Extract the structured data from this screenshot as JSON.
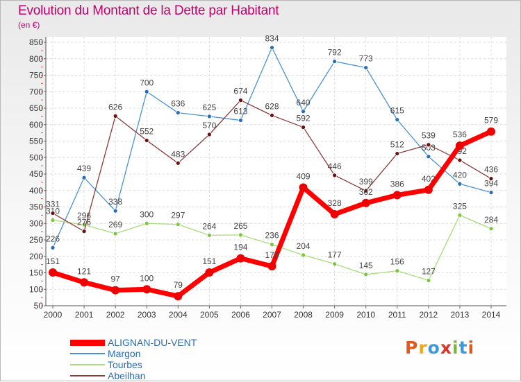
{
  "title": "Evolution du Montant de la Dette par Habitant",
  "unit_label": "(en €)",
  "logo_text": "Proxiti",
  "logo_colors": [
    "#e05a1e",
    "#f0a81a",
    "#3a9ad9",
    "#d8372a",
    "#7ab833",
    "#3a9ad9",
    "#e05a1e"
  ],
  "chart_data": {
    "type": "line",
    "x": [
      "2000",
      "2001",
      "2002",
      "2003",
      "2004",
      "2005",
      "2006",
      "2007",
      "2008",
      "2009",
      "2010",
      "2011",
      "2012",
      "2013",
      "2014"
    ],
    "ylim": [
      50,
      850
    ],
    "yticks": [
      50,
      100,
      150,
      200,
      250,
      300,
      350,
      400,
      450,
      500,
      550,
      600,
      650,
      700,
      750,
      800,
      850
    ],
    "grid": true,
    "legend_position": "bottom-left",
    "series": [
      {
        "name": "Margon",
        "color": "#4a90d0",
        "marker": "#2a6db4",
        "values": [
          226,
          439,
          338,
          700,
          636,
          625,
          613,
          834,
          640,
          792,
          773,
          615,
          503,
          420,
          394
        ]
      },
      {
        "name": "Tourbes",
        "color": "#a8dc78",
        "marker": "#7cc63f",
        "values": [
          310,
          296,
          269,
          300,
          297,
          264,
          265,
          236,
          204,
          177,
          145,
          156,
          127,
          325,
          284
        ]
      },
      {
        "name": "Abeilhan",
        "color": "#8b3a3a",
        "marker": "#6b1010",
        "values": [
          331,
          276,
          626,
          552,
          483,
          570,
          674,
          628,
          592,
          446,
          399,
          512,
          539,
          492,
          436
        ]
      },
      {
        "name": "ALIGNAN-DU-VENT",
        "color": "#ff0000",
        "marker": "#ee0000",
        "values": [
          151,
          121,
          97,
          100,
          79,
          151,
          194,
          170,
          409,
          328,
          362,
          386,
          402,
          536,
          579
        ]
      }
    ],
    "legend": [
      "ALIGNAN-DU-VENT",
      "Margon",
      "Tourbes",
      "Abeilhan"
    ]
  }
}
